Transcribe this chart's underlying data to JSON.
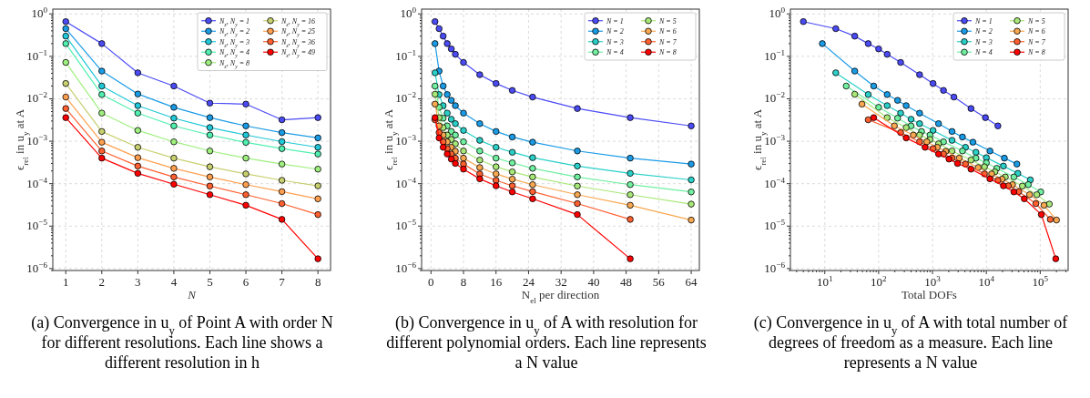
{
  "chart_data": [
    {
      "type": "line",
      "x": [
        1,
        2,
        3,
        4,
        5,
        6,
        7,
        8
      ],
      "xlabel": "N",
      "ylabel": "ϵ$_{rel}$ in u$_{y}$ at A",
      "log": "y",
      "grid": true,
      "legend": "top right",
      "marker": "circle",
      "xlim": [
        0.64,
        8.35
      ],
      "ylim": [
        9e-07,
        1.3
      ],
      "xticks": [
        1,
        2,
        3,
        4,
        5,
        6,
        7,
        8
      ],
      "yticks": [
        {
          "value": 1e-06,
          "label": "10$^{−6}$"
        },
        {
          "value": 1e-05,
          "label": "10$^{−5}$"
        },
        {
          "value": 0.0001,
          "label": "10$^{−4}$"
        },
        {
          "value": 0.001,
          "label": "10$^{−3}$"
        },
        {
          "value": 0.01,
          "label": "10$^{−2}$"
        },
        {
          "value": 0.1,
          "label": "10$^{−1}$"
        },
        {
          "value": 1,
          "label": "10$^{0}$"
        }
      ],
      "series": [
        {
          "name": "N$_{x}$, N$_{y}$ = 1",
          "color": "#4b4bf5",
          "values": [
            0.66,
            0.2,
            0.041,
            0.02,
            0.0079,
            0.0075,
            0.0032,
            0.0036
          ]
        },
        {
          "name": "N$_{x}$, N$_{y}$ = 2",
          "color": "#1a9be6",
          "values": [
            0.45,
            0.045,
            0.013,
            0.0063,
            0.0036,
            0.0023,
            0.0016,
            0.0012
          ]
        },
        {
          "name": "N$_{x}$, N$_{y}$ = 3",
          "color": "#20c8d8",
          "values": [
            0.3,
            0.02,
            0.0069,
            0.0035,
            0.0021,
            0.0014,
            0.00098,
            0.00072
          ]
        },
        {
          "name": "N$_{x}$, N$_{y}$ = 4",
          "color": "#50f0b0",
          "values": [
            0.2,
            0.0126,
            0.0046,
            0.0023,
            0.0014,
            0.00094,
            0.00067,
            0.0005
          ]
        },
        {
          "name": "N$_{x}$, N$_{y}$ = 8",
          "color": "#a0f080",
          "values": [
            0.072,
            0.0046,
            0.0018,
            0.00097,
            0.00059,
            0.0004,
            0.00029,
            0.00022
          ]
        },
        {
          "name": "N$_{x}$, N$_{y}$ = 16",
          "color": "#c8d070",
          "values": [
            0.023,
            0.0017,
            0.00072,
            0.0004,
            0.00025,
            0.00017,
            0.00012,
            8.9e-05
          ]
        },
        {
          "name": "N$_{x}$, N$_{y}$ = 25",
          "color": "#ffa050",
          "values": [
            0.011,
            0.00095,
            0.00041,
            0.00023,
            0.000144,
            9.5e-05,
            6.5e-05,
            4.4e-05
          ]
        },
        {
          "name": "N$_{x}$, N$_{y}$ = 36",
          "color": "#ff6030",
          "values": [
            0.0059,
            0.00059,
            0.00026,
            0.000144,
            8.8e-05,
            5.5e-05,
            3.4e-05,
            1.87e-05
          ]
        },
        {
          "name": "N$_{x}$, N$_{y}$ = 49",
          "color": "#ff0000",
          "values": [
            0.0036,
            0.0004,
            0.000175,
            9.7e-05,
            5.5e-05,
            3.1e-05,
            1.44e-05,
            1.7e-06
          ]
        }
      ],
      "annotations": [
        "(a) Convergence in u$_{y}$ of Point A with order N for different resolutions. Each line shows a different resolution in h"
      ]
    },
    {
      "type": "line",
      "x": [
        1,
        2,
        3,
        4,
        5,
        6,
        8,
        12,
        16,
        20,
        25,
        36,
        49,
        64
      ],
      "xlabel": "N$_{el}$ per direction",
      "ylabel": "ϵ$_{rel}$ in u$_{y}$ at A",
      "log": "y",
      "grid": true,
      "legend": "top right",
      "marker": "circle",
      "xlim": [
        -2.3,
        66
      ],
      "ylim": [
        9e-07,
        1.3
      ],
      "xticks": [
        0,
        8,
        16,
        24,
        32,
        40,
        48,
        56,
        64
      ],
      "yticks": [
        {
          "value": 1e-06,
          "label": "10$^{−6}$"
        },
        {
          "value": 1e-05,
          "label": "10$^{−5}$"
        },
        {
          "value": 0.0001,
          "label": "10$^{−4}$"
        },
        {
          "value": 0.001,
          "label": "10$^{−3}$"
        },
        {
          "value": 0.01,
          "label": "10$^{−2}$"
        },
        {
          "value": 0.1,
          "label": "10$^{−1}$"
        },
        {
          "value": 1,
          "label": "10$^{0}$"
        }
      ],
      "series": [
        {
          "name": "N = 1",
          "color": "#4b4bf5",
          "values": [
            0.66,
            0.45,
            0.3,
            0.2,
            0.15,
            0.112,
            0.072,
            0.037,
            0.023,
            0.0158,
            0.011,
            0.0059,
            0.0036,
            0.0023
          ]
        },
        {
          "name": "N = 2",
          "color": "#1a9be6",
          "values": [
            0.2,
            0.045,
            0.02,
            0.0126,
            0.0092,
            0.0069,
            0.0046,
            0.0026,
            0.0017,
            0.00126,
            0.00095,
            0.00059,
            0.0004,
            0.00029
          ]
        },
        {
          "name": "N = 3",
          "color": "#2ad0c8",
          "values": [
            0.041,
            0.0126,
            0.0069,
            0.0046,
            0.0033,
            0.0026,
            0.0018,
            0.00105,
            0.00072,
            0.00055,
            0.00041,
            0.00026,
            0.000175,
            0.000123
          ]
        },
        {
          "name": "N = 4",
          "color": "#70f0a0",
          "values": [
            0.02,
            0.0063,
            0.0035,
            0.0023,
            0.0017,
            0.0014,
            0.00097,
            0.00059,
            0.0004,
            0.00031,
            0.00023,
            0.000144,
            9.5e-05,
            6.4e-05
          ]
        },
        {
          "name": "N = 5",
          "color": "#a8e878",
          "values": [
            0.0128,
            0.0036,
            0.0021,
            0.0014,
            0.0011,
            0.00087,
            0.00059,
            0.00036,
            0.00025,
            0.00019,
            0.000144,
            8.8e-05,
            5.5e-05,
            3.3e-05
          ]
        },
        {
          "name": "N = 6",
          "color": "#f8a850",
          "values": [
            0.0075,
            0.0023,
            0.0014,
            0.00097,
            0.00072,
            0.00058,
            0.0004,
            0.00024,
            0.00017,
            0.000128,
            9.5e-05,
            5.5e-05,
            3.1e-05,
            1.39e-05
          ]
        },
        {
          "name": "N = 7",
          "color": "#ff6030",
          "values": [
            0.0032,
            0.0016,
            0.00097,
            0.00067,
            0.0005,
            0.0004,
            0.00029,
            0.00017,
            0.00012,
            8.9e-05,
            6.5e-05,
            3.4e-05,
            1.44e-05,
            null
          ]
        },
        {
          "name": "N = 8",
          "color": "#ff0000",
          "values": [
            0.0036,
            0.0012,
            0.00072,
            0.0005,
            0.00038,
            0.0003,
            0.00022,
            0.00013,
            8.9e-05,
            6.4e-05,
            4.4e-05,
            1.87e-05,
            1.7e-06,
            null
          ]
        }
      ],
      "annotations": [
        "(b) Convergence in u$_{y}$ of A with resolution for different polynomial orders. Each line represents a N value"
      ]
    },
    {
      "type": "line",
      "xlabel": "Total DOFs",
      "ylabel": "ϵ$_{rel}$ in u$_{y}$ at A",
      "log": "xy",
      "grid": true,
      "legend": "top right",
      "marker": "circle",
      "xlim": [
        2.3,
        330000
      ],
      "ylim": [
        9e-07,
        1.3
      ],
      "xticks": [
        {
          "value": 10,
          "label": "10$^{1}$"
        },
        {
          "value": 100,
          "label": "10$^{2}$"
        },
        {
          "value": 1000,
          "label": "10$^{3}$"
        },
        {
          "value": 10000,
          "label": "10$^{4}$"
        },
        {
          "value": 100000,
          "label": "10$^{5}$"
        }
      ],
      "yticks": [
        {
          "value": 1e-06,
          "label": "10$^{−6}$"
        },
        {
          "value": 1e-05,
          "label": "10$^{−5}$"
        },
        {
          "value": 0.0001,
          "label": "10$^{−4}$"
        },
        {
          "value": 0.001,
          "label": "10$^{−3}$"
        },
        {
          "value": 0.01,
          "label": "10$^{−2}$"
        },
        {
          "value": 0.1,
          "label": "10$^{−1}$"
        },
        {
          "value": 1,
          "label": "10$^{0}$"
        }
      ],
      "series": [
        {
          "name": "N = 1",
          "color": "#4b4bf5",
          "x": [
            4,
            16,
            36,
            64,
            100,
            144,
            256,
            576,
            1024,
            1600,
            2500,
            5184,
            9604,
            16384
          ],
          "values": [
            0.66,
            0.45,
            0.3,
            0.2,
            0.15,
            0.112,
            0.072,
            0.037,
            0.023,
            0.0158,
            0.011,
            0.0059,
            0.0036,
            0.0023
          ]
        },
        {
          "name": "N = 2",
          "color": "#1a9be6",
          "x": [
            9,
            36,
            81,
            144,
            225,
            324,
            576,
            1296,
            2304,
            3600,
            5625,
            11664,
            21609,
            36864
          ],
          "values": [
            0.2,
            0.045,
            0.02,
            0.0126,
            0.0092,
            0.0069,
            0.0046,
            0.0026,
            0.0017,
            0.00126,
            0.00095,
            0.00059,
            0.0004,
            0.00029
          ]
        },
        {
          "name": "N = 3",
          "color": "#2ad0c8",
          "x": [
            16,
            64,
            144,
            256,
            400,
            576,
            1024,
            2304,
            4096,
            6400,
            10000,
            20736,
            38416,
            65536
          ],
          "values": [
            0.041,
            0.0126,
            0.0069,
            0.0046,
            0.0033,
            0.0026,
            0.0018,
            0.00105,
            0.00072,
            0.00055,
            0.00041,
            0.00026,
            0.000175,
            0.000123
          ]
        },
        {
          "name": "N = 4",
          "color": "#70f0a0",
          "x": [
            25,
            100,
            225,
            400,
            625,
            900,
            1600,
            3600,
            6400,
            10000,
            15625,
            32400,
            60025,
            102400
          ],
          "values": [
            0.02,
            0.0063,
            0.0035,
            0.0023,
            0.0017,
            0.0014,
            0.00097,
            0.00059,
            0.0004,
            0.00031,
            0.00023,
            0.000144,
            9.5e-05,
            6.4e-05
          ]
        },
        {
          "name": "N = 5",
          "color": "#a8e878",
          "x": [
            36,
            144,
            324,
            576,
            900,
            1296,
            2304,
            5184,
            9216,
            14400,
            22500,
            46656,
            86436,
            147456
          ],
          "values": [
            0.0128,
            0.0036,
            0.0021,
            0.0014,
            0.0011,
            0.00087,
            0.00059,
            0.00036,
            0.00025,
            0.00019,
            0.000144,
            8.8e-05,
            5.5e-05,
            3.3e-05
          ]
        },
        {
          "name": "N = 6",
          "color": "#f8a850",
          "x": [
            49,
            196,
            441,
            784,
            1225,
            1764,
            3136,
            7056,
            12544,
            19600,
            30625,
            63504,
            117649,
            200704
          ],
          "values": [
            0.0075,
            0.0023,
            0.0014,
            0.00097,
            0.00072,
            0.00058,
            0.0004,
            0.00024,
            0.00017,
            0.000128,
            9.5e-05,
            5.5e-05,
            3.1e-05,
            1.39e-05
          ]
        },
        {
          "name": "N = 7",
          "color": "#ff6030",
          "x": [
            64,
            256,
            576,
            1024,
            1600,
            2304,
            4096,
            9216,
            16384,
            25600,
            40000,
            82944,
            153664
          ],
          "values": [
            0.0032,
            0.0016,
            0.00097,
            0.00067,
            0.0005,
            0.0004,
            0.00029,
            0.00017,
            0.00012,
            8.9e-05,
            6.5e-05,
            3.4e-05,
            1.44e-05
          ]
        },
        {
          "name": "N = 8",
          "color": "#ff0000",
          "x": [
            81,
            324,
            729,
            1296,
            2025,
            2916,
            5184,
            11664,
            20736,
            32400,
            50625,
            104976,
            194481
          ],
          "values": [
            0.0036,
            0.0012,
            0.00072,
            0.0005,
            0.00038,
            0.0003,
            0.00022,
            0.00013,
            8.9e-05,
            6.4e-05,
            4.4e-05,
            1.87e-05,
            1.7e-06
          ]
        }
      ],
      "annotations": [
        "(c) Convergence in u$_{y}$ of A with total number of degrees of freedom as a measure. Each line represents a N value"
      ]
    }
  ]
}
